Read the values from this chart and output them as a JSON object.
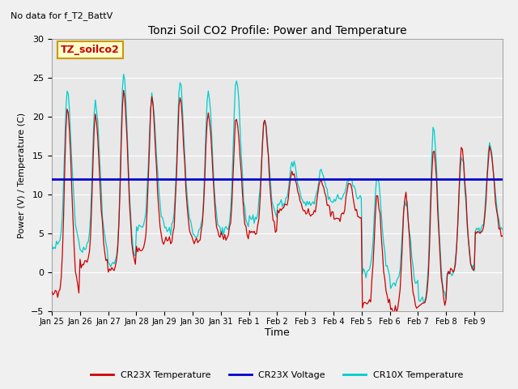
{
  "title": "Tonzi Soil CO2 Profile: Power and Temperature",
  "subtitle": "No data for f_T2_BattV",
  "ylabel": "Power (V) / Temperature (C)",
  "xlabel": "Time",
  "ylim": [
    -5,
    30
  ],
  "yticks": [
    -5,
    0,
    5,
    10,
    15,
    20,
    25,
    30
  ],
  "xtick_labels": [
    "Jan 25",
    "Jan 26",
    "Jan 27",
    "Jan 28",
    "Jan 29",
    "Jan 30",
    "Jan 31",
    "Feb 1",
    "Feb 2",
    "Feb 3",
    "Feb 4",
    "Feb 5",
    "Feb 6",
    "Feb 7",
    "Feb 8",
    "Feb 9"
  ],
  "voltage_value": 12.0,
  "cr23x_color": "#cc0000",
  "cr10x_color": "#00cccc",
  "voltage_color": "#0000cc",
  "plot_bg_color": "#e8e8e8",
  "fig_bg_color": "#f0f0f0",
  "annotation_text": "TZ_soilco2",
  "annotation_bg": "#ffffcc",
  "annotation_border": "#cc9900",
  "legend_labels": [
    "CR23X Temperature",
    "CR23X Voltage",
    "CR10X Temperature"
  ]
}
